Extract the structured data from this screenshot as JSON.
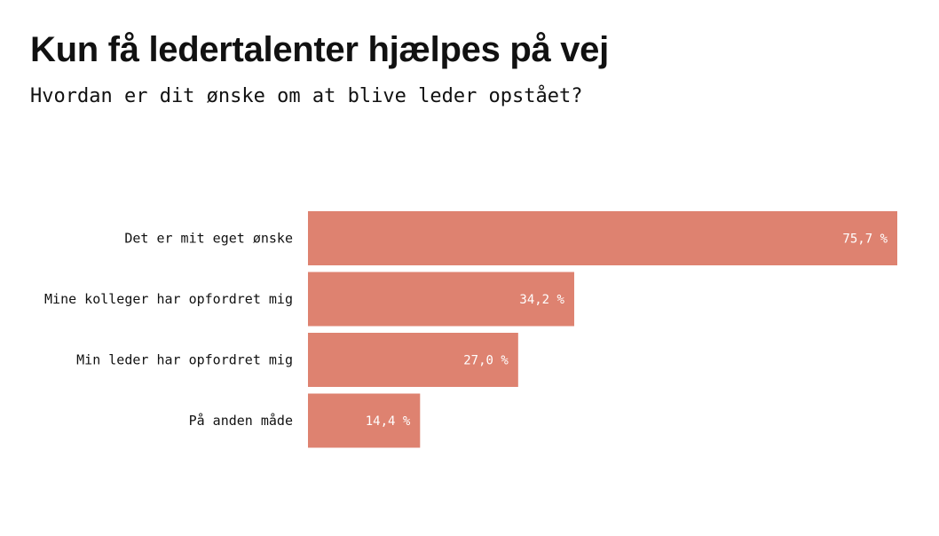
{
  "chart_data": {
    "type": "bar",
    "orientation": "horizontal",
    "title": "Kun få ledertalenter hjælpes på vej",
    "subtitle": "Hvordan er dit ønske om at blive leder opstået?",
    "categories": [
      "Det er mit eget ønske",
      "Mine kolleger har opfordret mig",
      "Min leder har opfordret mig",
      "På anden måde"
    ],
    "values": [
      75.7,
      34.2,
      27.0,
      14.4
    ],
    "value_labels": [
      "75,7 %",
      "34,2 %",
      "27,0 %",
      "14,4 %"
    ],
    "unit": "%",
    "xlim": [
      0,
      75.7
    ],
    "grid": false,
    "legend": "none",
    "bar_color": "#de8270"
  }
}
